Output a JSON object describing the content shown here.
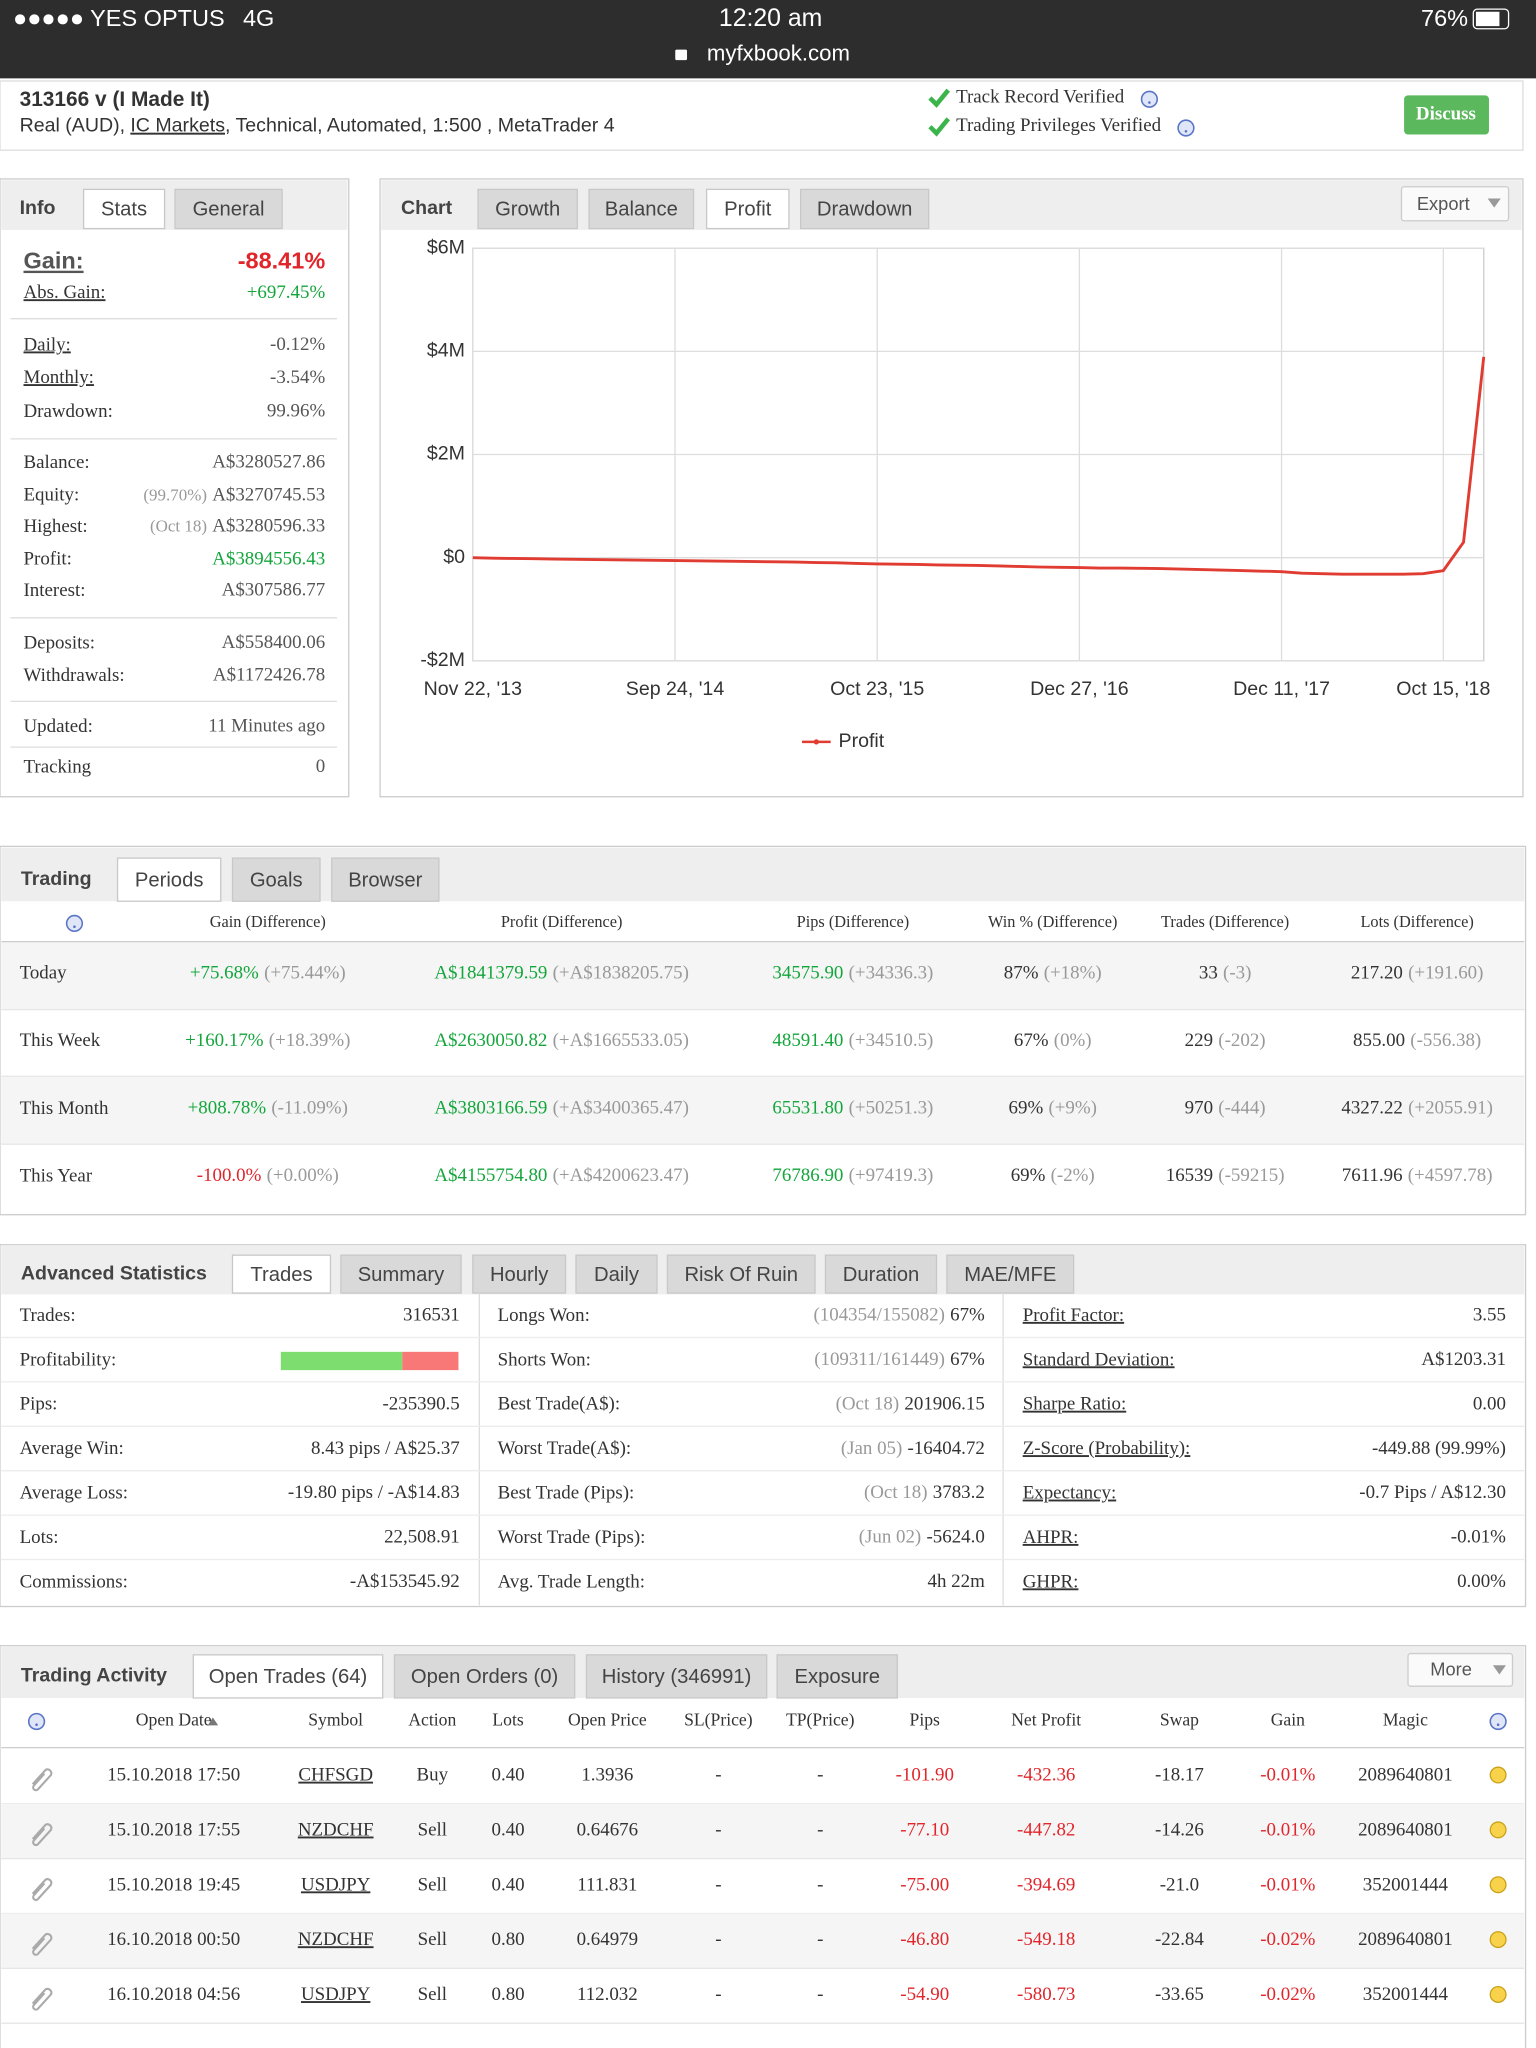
{
  "status_bar": {
    "carrier": "●●●●● YES OPTUS",
    "network": "4G",
    "time": "12:20 am",
    "battery": "76%",
    "url": "myfxbook.com"
  },
  "header": {
    "title": "313166 v (I Made It)",
    "account": "Real (AUD),",
    "broker": "IC Markets",
    "details": ", Technical, Automated, 1:500 , MetaTrader 4",
    "verified": [
      "Track Record Verified",
      "Trading Privileges Verified"
    ],
    "discuss": "Discuss"
  },
  "info": {
    "tabs": [
      "Info",
      "Stats",
      "General"
    ],
    "rows": [
      {
        "label": "Gain:",
        "value": "-88.41%"
      },
      {
        "label": "Abs. Gain:",
        "value": "+697.45%"
      },
      {
        "label": "Daily:",
        "value": "-0.12%"
      },
      {
        "label": "Monthly:",
        "value": "-3.54%"
      },
      {
        "label": "Drawdown:",
        "value": "99.96%"
      },
      {
        "label": "Balance:",
        "value": "A$3280527.86"
      },
      {
        "label": "Equity:",
        "note": "(99.70%)",
        "value": "A$3270745.53"
      },
      {
        "label": "Highest:",
        "note": "(Oct 18)",
        "value": "A$3280596.33"
      },
      {
        "label": "Profit:",
        "value": "A$3894556.43"
      },
      {
        "label": "Interest:",
        "value": "A$307586.77"
      },
      {
        "label": "Deposits:",
        "value": "A$558400.06"
      },
      {
        "label": "Withdrawals:",
        "value": "A$1172426.78"
      },
      {
        "label": "Updated:",
        "value": "11 Minutes ago"
      },
      {
        "label": "Tracking",
        "value": "0"
      }
    ]
  },
  "chart": {
    "tabs": [
      "Chart",
      "Growth",
      "Balance",
      "Profit",
      "Drawdown"
    ],
    "export": "Export",
    "chart_data": {
      "type": "line",
      "categories": [
        "Nov 22, '13",
        null,
        null,
        null,
        null,
        null,
        null,
        null,
        null,
        null,
        "Sep 24, '14",
        null,
        null,
        null,
        null,
        null,
        null,
        null,
        null,
        null,
        "Oct 23, '15",
        null,
        null,
        null,
        null,
        null,
        null,
        null,
        null,
        null,
        "Dec 27, '16",
        null,
        null,
        null,
        null,
        null,
        null,
        null,
        null,
        null,
        "Dec 11, '17",
        null,
        null,
        null,
        null,
        null,
        null,
        null,
        "Oct 15, '18",
        null,
        null
      ],
      "series": [
        {
          "name": "Profit",
          "color": "#e03c31",
          "values": [
            0,
            -10000,
            -15000,
            -20000,
            -25000,
            -30000,
            -35000,
            -40000,
            -45000,
            -50000,
            -55000,
            -60000,
            -65000,
            -70000,
            -75000,
            -80000,
            -85000,
            -95000,
            -100000,
            -110000,
            -120000,
            -125000,
            -130000,
            -140000,
            -145000,
            -150000,
            -160000,
            -170000,
            -180000,
            -185000,
            -190000,
            -200000,
            -200000,
            -205000,
            -210000,
            -220000,
            -230000,
            -240000,
            -250000,
            -260000,
            -270000,
            -300000,
            -310000,
            -320000,
            -320000,
            -320000,
            -320000,
            -310000,
            -250000,
            300000,
            3894556
          ]
        }
      ],
      "ylim": [
        -2000000,
        6000000
      ],
      "yticks": [
        {
          "value": -2000000,
          "label": "-$2M"
        },
        {
          "value": 0,
          "label": "$0"
        },
        {
          "value": 2000000,
          "label": "$2M"
        },
        {
          "value": 4000000,
          "label": "$4M"
        },
        {
          "value": 6000000,
          "label": "$6M"
        }
      ],
      "grid": true,
      "legend": "bottom"
    }
  },
  "trading": {
    "tabs": [
      "Trading",
      "Periods",
      "Goals",
      "Browser"
    ],
    "headers": [
      "Gain (Difference)",
      "Profit (Difference)",
      "Pips (Difference)",
      "Win % (Difference)",
      "Trades (Difference)",
      "Lots (Difference)"
    ],
    "rows": [
      {
        "label": "Today",
        "cells": [
          [
            "+75.68%",
            "(+75.44%)"
          ],
          [
            "A$1841379.59",
            "(+A$1838205.75)"
          ],
          [
            "34575.90",
            "(+34336.3)"
          ],
          [
            "87%",
            "(+18%)"
          ],
          [
            "33",
            "(-3)"
          ],
          [
            "217.20",
            "(+191.60)"
          ]
        ]
      },
      {
        "label": "This Week",
        "cells": [
          [
            "+160.17%",
            "(+18.39%)"
          ],
          [
            "A$2630050.82",
            "(+A$1665533.05)"
          ],
          [
            "48591.40",
            "(+34510.5)"
          ],
          [
            "67%",
            "(0%)"
          ],
          [
            "229",
            "(-202)"
          ],
          [
            "855.00",
            "(-556.38)"
          ]
        ]
      },
      {
        "label": "This Month",
        "cells": [
          [
            "+808.78%",
            "(-11.09%)"
          ],
          [
            "A$3803166.59",
            "(+A$3400365.47)"
          ],
          [
            "65531.80",
            "(+50251.3)"
          ],
          [
            "69%",
            "(+9%)"
          ],
          [
            "970",
            "(-444)"
          ],
          [
            "4327.22",
            "(+2055.91)"
          ]
        ]
      },
      {
        "label": "This Year",
        "cells": [
          [
            "-100.0%",
            "(+0.00%)"
          ],
          [
            "A$4155754.80",
            "(+A$4200623.47)"
          ],
          [
            "76786.90",
            "(+97419.3)"
          ],
          [
            "69%",
            "(-2%)"
          ],
          [
            "16539",
            "(-59215)"
          ],
          [
            "7611.96",
            "(+4597.78)"
          ]
        ]
      }
    ]
  },
  "advanced": {
    "tabs": [
      "Advanced Statistics",
      "Trades",
      "Summary",
      "Hourly",
      "Daily",
      "Risk Of Ruin",
      "Duration",
      "MAE/MFE"
    ],
    "columns": [
      [
        {
          "label": "Trades:",
          "value": "316531"
        },
        {
          "label": "Profitability:"
        },
        {
          "label": "Pips:",
          "value": "-235390.5"
        },
        {
          "label": "Average Win:",
          "value": "8.43 pips / A$25.37"
        },
        {
          "label": "Average Loss:",
          "value": "-19.80 pips / -A$14.83"
        },
        {
          "label": "Lots:",
          "value": "22,508.91"
        },
        {
          "label": "Commissions:",
          "value": "-A$153545.92"
        }
      ],
      [
        {
          "label": "Longs Won:",
          "note": "(104354/155082)",
          "value": "67%"
        },
        {
          "label": "Shorts Won:",
          "note": "(109311/161449)",
          "value": "67%"
        },
        {
          "label": "Best Trade(A$):",
          "note": "(Oct 18)",
          "value": "201906.15"
        },
        {
          "label": "Worst Trade(A$):",
          "note": "(Jan 05)",
          "value": "-16404.72"
        },
        {
          "label": "Best Trade (Pips):",
          "note": "(Oct 18)",
          "value": "3783.2"
        },
        {
          "label": "Worst Trade (Pips):",
          "note": "(Jun 02)",
          "value": "-5624.0"
        },
        {
          "label": "Avg. Trade Length:",
          "value": "4h 22m"
        }
      ],
      [
        {
          "label": "Profit Factor:",
          "value": "3.55"
        },
        {
          "label": "Standard Deviation:",
          "value": "A$1203.31"
        },
        {
          "label": "Sharpe Ratio:",
          "value": "0.00"
        },
        {
          "label": "Z-Score (Probability):",
          "value": "-449.88 (99.99%)"
        },
        {
          "label": "Expectancy:",
          "value": "-0.7 Pips / A$12.30"
        },
        {
          "label": "AHPR:",
          "value": "-0.01%"
        },
        {
          "label": "GHPR:",
          "value": "0.00%"
        }
      ]
    ]
  },
  "activity": {
    "tabs": [
      "Trading Activity",
      "Open Trades (64)",
      "Open Orders (0)",
      "History (346991)",
      "Exposure"
    ],
    "more": "More",
    "headers": [
      "Open Date",
      "Symbol",
      "Action",
      "Lots",
      "Open Price",
      "SL(Price)",
      "TP(Price)",
      "Pips",
      "Net Profit",
      "Swap",
      "Gain",
      "Magic"
    ],
    "rows": [
      [
        "15.10.2018 17:50",
        "CHFSGD",
        "Buy",
        "0.40",
        "1.3936",
        "-",
        "-",
        "-101.90",
        "-432.36",
        "-18.17",
        "-0.01%",
        "2089640801"
      ],
      [
        "15.10.2018 17:55",
        "NZDCHF",
        "Sell",
        "0.40",
        "0.64676",
        "-",
        "-",
        "-77.10",
        "-447.82",
        "-14.26",
        "-0.01%",
        "2089640801"
      ],
      [
        "15.10.2018 19:45",
        "USDJPY",
        "Sell",
        "0.40",
        "111.831",
        "-",
        "-",
        "-75.00",
        "-394.69",
        "-21.0",
        "-0.01%",
        "352001444"
      ],
      [
        "16.10.2018 00:50",
        "NZDCHF",
        "Sell",
        "0.80",
        "0.64979",
        "-",
        "-",
        "-46.80",
        "-549.18",
        "-22.84",
        "-0.02%",
        "2089640801"
      ],
      [
        "16.10.2018 04:56",
        "USDJPY",
        "Sell",
        "0.80",
        "112.032",
        "-",
        "-",
        "-54.90",
        "-580.73",
        "-33.65",
        "-0.02%",
        "352001444"
      ]
    ]
  }
}
